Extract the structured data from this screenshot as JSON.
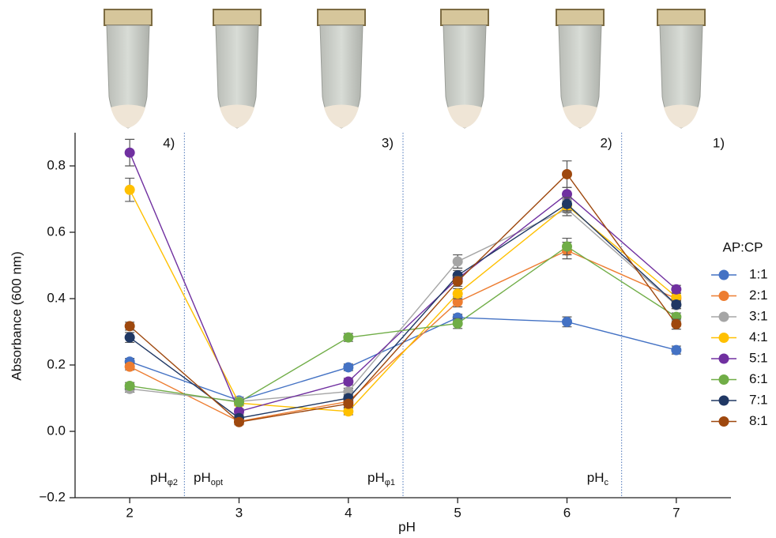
{
  "chart_data": {
    "type": "line",
    "x_label": "pH",
    "y_label": "Absorbance (600 nm)",
    "x": [
      2,
      3,
      4,
      5,
      6,
      7
    ],
    "xlim": [
      1.5,
      7.5
    ],
    "xticks": [
      2,
      3,
      4,
      5,
      6,
      7
    ],
    "ylim": [
      -0.2,
      0.9
    ],
    "yticks": [
      {
        "value": -0.2,
        "label": "−0.2"
      },
      {
        "value": 0,
        "label": "0.0"
      },
      0.2,
      0.4,
      0.6,
      0.8
    ],
    "legend_title": "AP:CP",
    "legend_position": "right",
    "dividers": [
      2.5,
      4.5,
      6.5
    ],
    "region_labels": [
      "4)",
      "3)",
      "2)",
      "1)"
    ],
    "phase_labels": [
      {
        "text": "pH",
        "sub": "φ2"
      },
      {
        "text": "pH",
        "sub": "opt"
      },
      {
        "text": "pH",
        "sub": "φ1"
      },
      {
        "text": "pH",
        "sub": "c"
      }
    ],
    "series": [
      {
        "name": "1:1",
        "color": "#4472c4",
        "values": [
          0.21,
          0.093,
          0.193,
          0.343,
          0.33,
          0.245
        ],
        "errors": [
          0.01,
          0.01,
          0.01,
          0.01,
          0.015,
          0.012
        ]
      },
      {
        "name": "2:1",
        "color": "#ed7d31",
        "values": [
          0.195,
          0.03,
          0.09,
          0.39,
          0.545,
          0.4
        ],
        "errors": [
          0.01,
          0.008,
          0.01,
          0.015,
          0.025,
          0.01
        ]
      },
      {
        "name": "3:1",
        "color": "#a5a5a5",
        "values": [
          0.128,
          0.09,
          0.12,
          0.512,
          0.67,
          0.38
        ],
        "errors": [
          0.01,
          0.008,
          0.01,
          0.02,
          0.02,
          0.01
        ]
      },
      {
        "name": "4:1",
        "color": "#ffc000",
        "values": [
          0.728,
          0.085,
          0.06,
          0.415,
          0.68,
          0.405
        ],
        "errors": [
          0.035,
          0.008,
          0.01,
          0.015,
          0.02,
          0.012
        ]
      },
      {
        "name": "5:1",
        "color": "#7030a0",
        "values": [
          0.84,
          0.06,
          0.15,
          0.46,
          0.715,
          0.428
        ],
        "errors": [
          0.04,
          0.008,
          0.01,
          0.015,
          0.02,
          0.012
        ]
      },
      {
        "name": "6:1",
        "color": "#70ad47",
        "values": [
          0.137,
          0.088,
          0.283,
          0.325,
          0.557,
          0.345
        ],
        "errors": [
          0.01,
          0.008,
          0.012,
          0.015,
          0.025,
          0.012
        ]
      },
      {
        "name": "7:1",
        "color": "#203864",
        "values": [
          0.283,
          0.04,
          0.1,
          0.47,
          0.685,
          0.382
        ],
        "errors": [
          0.015,
          0.008,
          0.01,
          0.015,
          0.02,
          0.012
        ]
      },
      {
        "name": "8:1",
        "color": "#9e480e",
        "values": [
          0.317,
          0.028,
          0.083,
          0.452,
          0.775,
          0.323
        ],
        "errors": [
          0.012,
          0.008,
          0.01,
          0.015,
          0.04,
          0.015
        ]
      }
    ]
  }
}
